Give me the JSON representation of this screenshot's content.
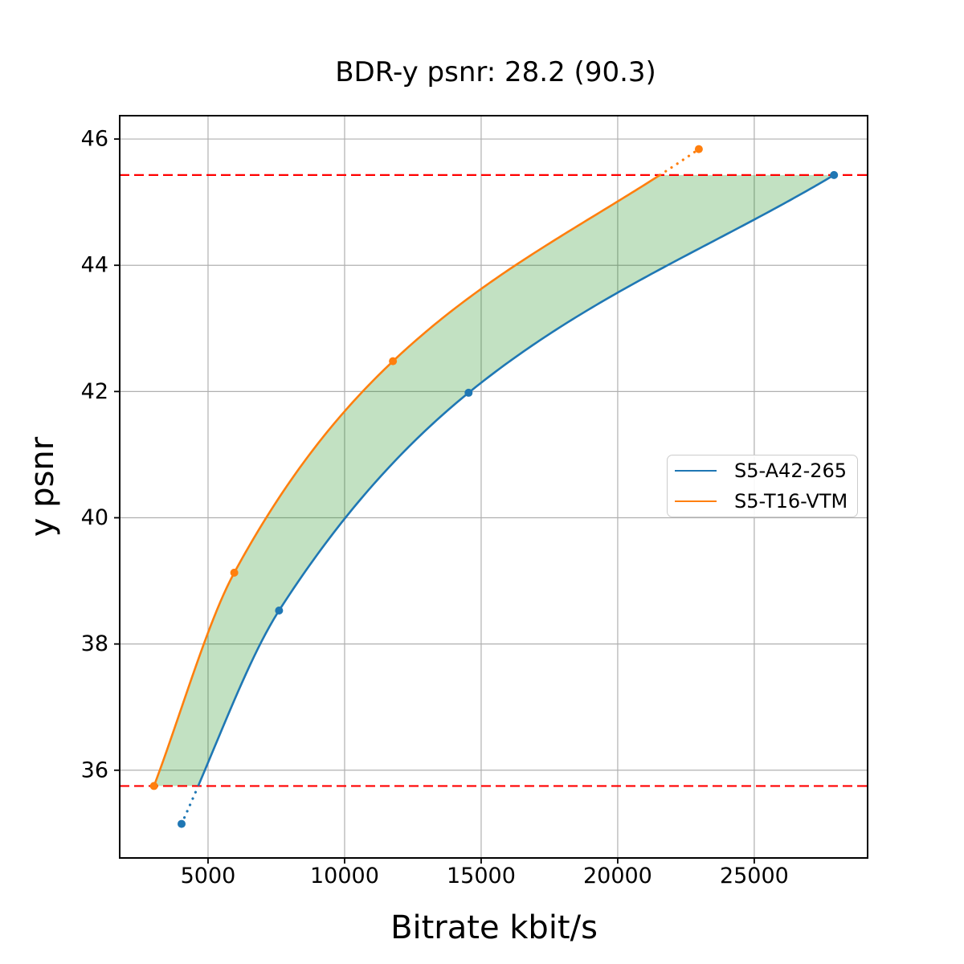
{
  "chart": {
    "title": "BDR-y psnr: 28.2 (90.3)",
    "xlabel": "Bitrate kbit/s",
    "ylabel": "y psnr"
  },
  "chart_data": {
    "type": "line",
    "title": "BDR-y psnr: 28.2 (90.3)",
    "xlabel": "Bitrate kbit/s",
    "ylabel": "y psnr",
    "xlim": [
      1765,
      29150
    ],
    "ylim": [
      34.61,
      46.37
    ],
    "xticks": [
      5000,
      10000,
      15000,
      20000,
      25000
    ],
    "xtick_labels": [
      "5000",
      "10000",
      "15000",
      "20000",
      "25000"
    ],
    "yticks": [
      36,
      38,
      40,
      42,
      44,
      46
    ],
    "ytick_labels": [
      "36",
      "38",
      "40",
      "42",
      "44",
      "46"
    ],
    "grid": true,
    "grid_color": "#b0b0b0",
    "legend_position": "center right",
    "series": [
      {
        "name": "S5-A42-265",
        "color": "#1f77b4",
        "points": [
          [
            4030,
            35.15
          ],
          [
            7600,
            38.53
          ],
          [
            14540,
            41.98
          ],
          [
            27920,
            45.43
          ]
        ]
      },
      {
        "name": "S5-T16-VTM",
        "color": "#ff7f0e",
        "points": [
          [
            3020,
            35.75
          ],
          [
            5960,
            39.13
          ],
          [
            11770,
            42.48
          ],
          [
            22970,
            45.84
          ]
        ]
      }
    ],
    "reference_lines": {
      "color": "#ff0000",
      "style": "dashed",
      "y_values": [
        35.75,
        45.43
      ]
    },
    "shaded_region": {
      "color": "#008000",
      "opacity": 0.24,
      "between": [
        "S5-T16-VTM",
        "S5-A42-265"
      ],
      "y_range": [
        35.75,
        45.43
      ]
    }
  }
}
